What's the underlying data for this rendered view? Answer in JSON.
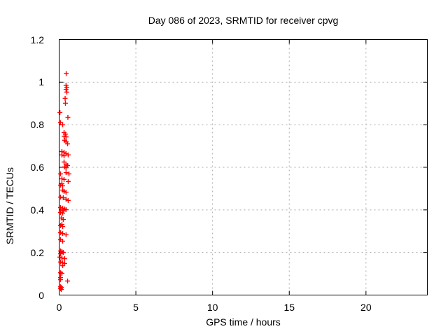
{
  "chart_data": {
    "type": "scatter",
    "title": "Day 086 of 2023, SRMTID for receiver cpvg",
    "xlabel": "GPS time / hours",
    "ylabel": "SRMTID / TECUs",
    "xlim": [
      0,
      24
    ],
    "ylim": [
      0,
      1.2
    ],
    "x_ticks": [
      0,
      5,
      10,
      15,
      20
    ],
    "x_tick_labels": [
      "0",
      "5",
      "10",
      "15",
      "20"
    ],
    "y_ticks": [
      0,
      0.2,
      0.4,
      0.6,
      0.8,
      1,
      1.2
    ],
    "y_tick_labels": [
      "0",
      "0.2",
      "0.4",
      "0.6",
      "0.8",
      "1",
      "1.2"
    ],
    "grid": true,
    "legend": "none",
    "marker": "plus",
    "marker_color": "#ff0000",
    "grid_color": "#aaaaaa",
    "axis_color": "#000000",
    "background_color": "#ffffff",
    "series": [
      {
        "name": "SRMTID",
        "points": [
          [
            0.46,
            1.04
          ],
          [
            0.45,
            0.985
          ],
          [
            0.5,
            0.975
          ],
          [
            0.45,
            0.966
          ],
          [
            0.5,
            0.953
          ],
          [
            0.39,
            0.924
          ],
          [
            0.41,
            0.901
          ],
          [
            0.05,
            0.858
          ],
          [
            0.57,
            0.835
          ],
          [
            0.09,
            0.81
          ],
          [
            0.23,
            0.8
          ],
          [
            0.32,
            0.763
          ],
          [
            0.41,
            0.756
          ],
          [
            0.32,
            0.746
          ],
          [
            0.45,
            0.743
          ],
          [
            0.36,
            0.727
          ],
          [
            0.45,
            0.72
          ],
          [
            0.55,
            0.71
          ],
          [
            0.18,
            0.674
          ],
          [
            0.32,
            0.671
          ],
          [
            0.45,
            0.664
          ],
          [
            0.18,
            0.658
          ],
          [
            0.59,
            0.658
          ],
          [
            0.32,
            0.654
          ],
          [
            0.32,
            0.625
          ],
          [
            0.45,
            0.615
          ],
          [
            0.55,
            0.608
          ],
          [
            0.36,
            0.602
          ],
          [
            0.45,
            0.598
          ],
          [
            0.45,
            0.575
          ],
          [
            0.09,
            0.569
          ],
          [
            0.64,
            0.569
          ],
          [
            0.18,
            0.546
          ],
          [
            0.32,
            0.543
          ],
          [
            0.59,
            0.533
          ],
          [
            0.18,
            0.523
          ],
          [
            0.09,
            0.516
          ],
          [
            0.23,
            0.513
          ],
          [
            0.23,
            0.493
          ],
          [
            0.32,
            0.487
          ],
          [
            0.45,
            0.483
          ],
          [
            0.09,
            0.46
          ],
          [
            0.27,
            0.457
          ],
          [
            0.45,
            0.45
          ],
          [
            0.59,
            0.444
          ],
          [
            0.09,
            0.411
          ],
          [
            0.23,
            0.408
          ],
          [
            0.36,
            0.404
          ],
          [
            0.45,
            0.401
          ],
          [
            0.27,
            0.395
          ],
          [
            0.09,
            0.388
          ],
          [
            0.23,
            0.385
          ],
          [
            0.14,
            0.362
          ],
          [
            0.27,
            0.355
          ],
          [
            0.18,
            0.332
          ],
          [
            0.09,
            0.326
          ],
          [
            0.23,
            0.322
          ],
          [
            0.09,
            0.293
          ],
          [
            0.23,
            0.289
          ],
          [
            0.45,
            0.283
          ],
          [
            0.09,
            0.26
          ],
          [
            0.23,
            0.253
          ],
          [
            0.09,
            0.207
          ],
          [
            0.18,
            0.204
          ],
          [
            0.27,
            0.2
          ],
          [
            0.09,
            0.194
          ],
          [
            0.05,
            0.178
          ],
          [
            0.18,
            0.174
          ],
          [
            0.36,
            0.171
          ],
          [
            0.09,
            0.155
          ],
          [
            0.23,
            0.151
          ],
          [
            0.36,
            0.148
          ],
          [
            0.23,
            0.138
          ],
          [
            0.09,
            0.105
          ],
          [
            0.18,
            0.102
          ],
          [
            0.09,
            0.082
          ],
          [
            0.09,
            0.072
          ],
          [
            0.55,
            0.066
          ],
          [
            0.09,
            0.039
          ],
          [
            0.14,
            0.036
          ],
          [
            0.09,
            0.03
          ],
          [
            0.14,
            0.026
          ]
        ]
      }
    ]
  }
}
